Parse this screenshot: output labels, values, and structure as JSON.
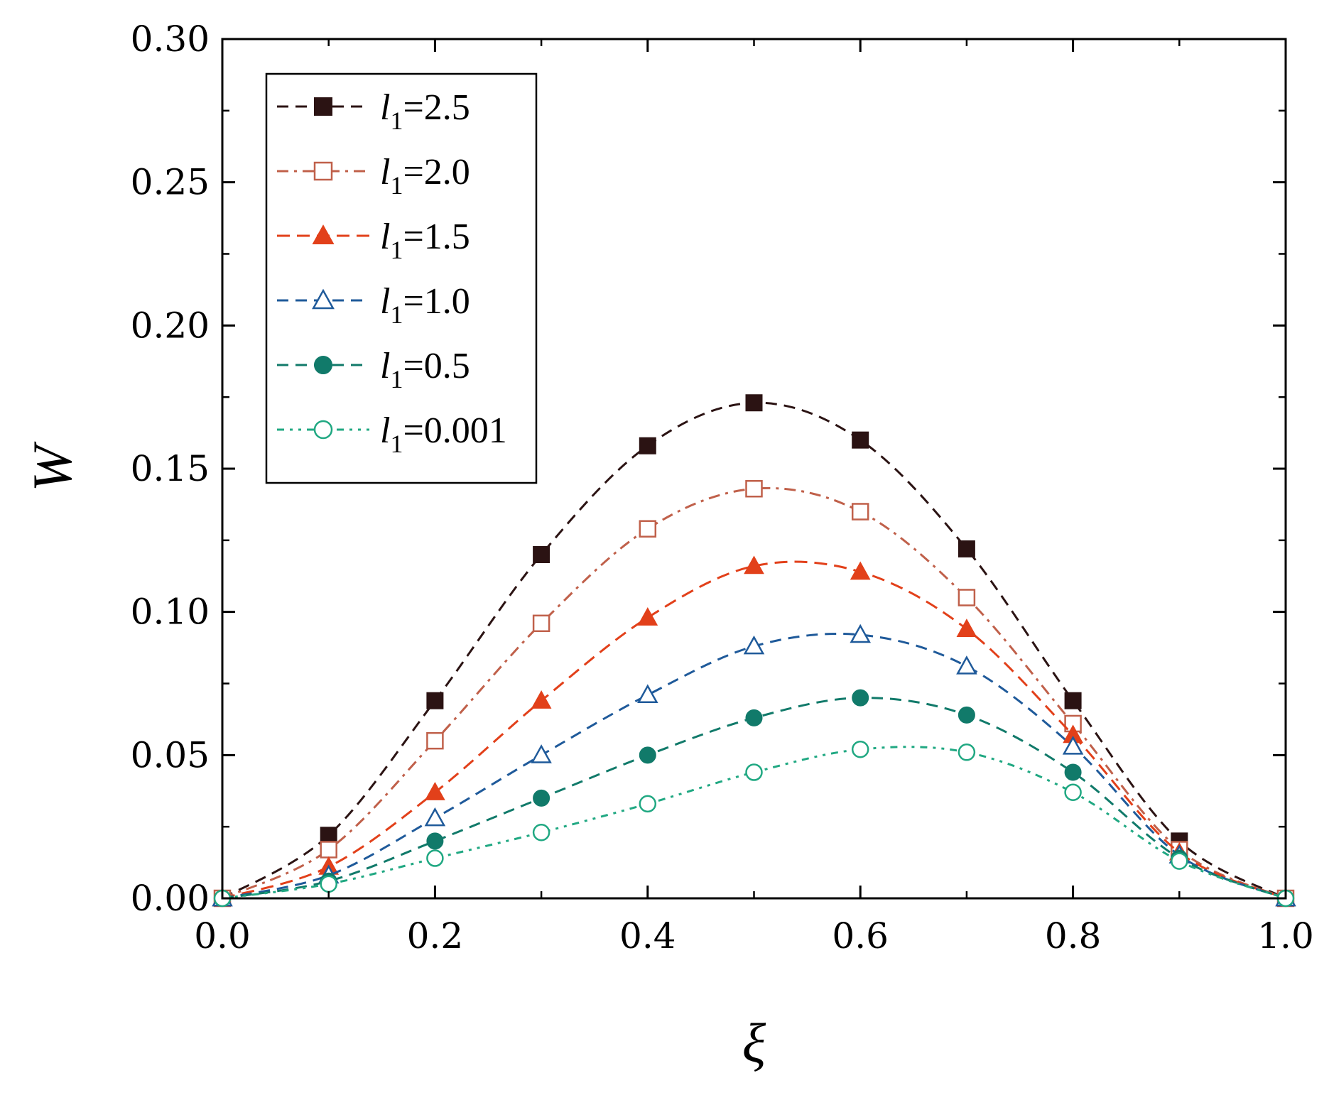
{
  "chart_data": {
    "type": "line",
    "title": "",
    "xlabel": "ξ",
    "ylabel": "W",
    "xlim": [
      0.0,
      1.0
    ],
    "ylim": [
      0.0,
      0.3
    ],
    "xticks": [
      "0.0",
      "0.2",
      "0.4",
      "0.6",
      "0.8",
      "1.0"
    ],
    "yticks": [
      "0.00",
      "0.05",
      "0.10",
      "0.15",
      "0.20",
      "0.25",
      "0.30"
    ],
    "legend_position": "top-left",
    "x": [
      0.0,
      0.1,
      0.2,
      0.3,
      0.4,
      0.5,
      0.6,
      0.7,
      0.8,
      0.9,
      1.0
    ],
    "series": [
      {
        "name": "l1=2.5",
        "legend_var": "l",
        "legend_sub": "1",
        "legend_value": "=2.5",
        "color": "#2b1313",
        "marker": "square-filled",
        "values": [
          0.0,
          0.022,
          0.069,
          0.12,
          0.158,
          0.173,
          0.16,
          0.122,
          0.069,
          0.02,
          0.0
        ]
      },
      {
        "name": "l1=2.0",
        "legend_var": "l",
        "legend_sub": "1",
        "legend_value": "=2.0",
        "color": "#c0604a",
        "marker": "square-open",
        "values": [
          0.0,
          0.017,
          0.055,
          0.096,
          0.129,
          0.143,
          0.135,
          0.105,
          0.061,
          0.017,
          0.0
        ]
      },
      {
        "name": "l1=1.5",
        "legend_var": "l",
        "legend_sub": "1",
        "legend_value": "=1.5",
        "color": "#e2401a",
        "marker": "triangle-filled",
        "values": [
          0.0,
          0.011,
          0.037,
          0.069,
          0.098,
          0.116,
          0.114,
          0.094,
          0.057,
          0.016,
          0.0
        ]
      },
      {
        "name": "l1=1.0",
        "legend_var": "l",
        "legend_sub": "1",
        "legend_value": "=1.0",
        "color": "#1f5a9a",
        "marker": "triangle-open",
        "values": [
          0.0,
          0.008,
          0.028,
          0.05,
          0.071,
          0.088,
          0.092,
          0.081,
          0.053,
          0.015,
          0.0
        ]
      },
      {
        "name": "l1=0.5",
        "legend_var": "l",
        "legend_sub": "1",
        "legend_value": "=0.5",
        "color": "#117a6a",
        "marker": "circle-filled",
        "values": [
          0.0,
          0.006,
          0.02,
          0.035,
          0.05,
          0.063,
          0.07,
          0.064,
          0.044,
          0.014,
          0.0
        ]
      },
      {
        "name": "l1=0.001",
        "legend_var": "l",
        "legend_sub": "1",
        "legend_value": "=0.001",
        "color": "#20a882",
        "marker": "circle-open",
        "values": [
          0.0,
          0.005,
          0.014,
          0.023,
          0.033,
          0.044,
          0.052,
          0.051,
          0.037,
          0.013,
          0.0
        ]
      }
    ]
  }
}
